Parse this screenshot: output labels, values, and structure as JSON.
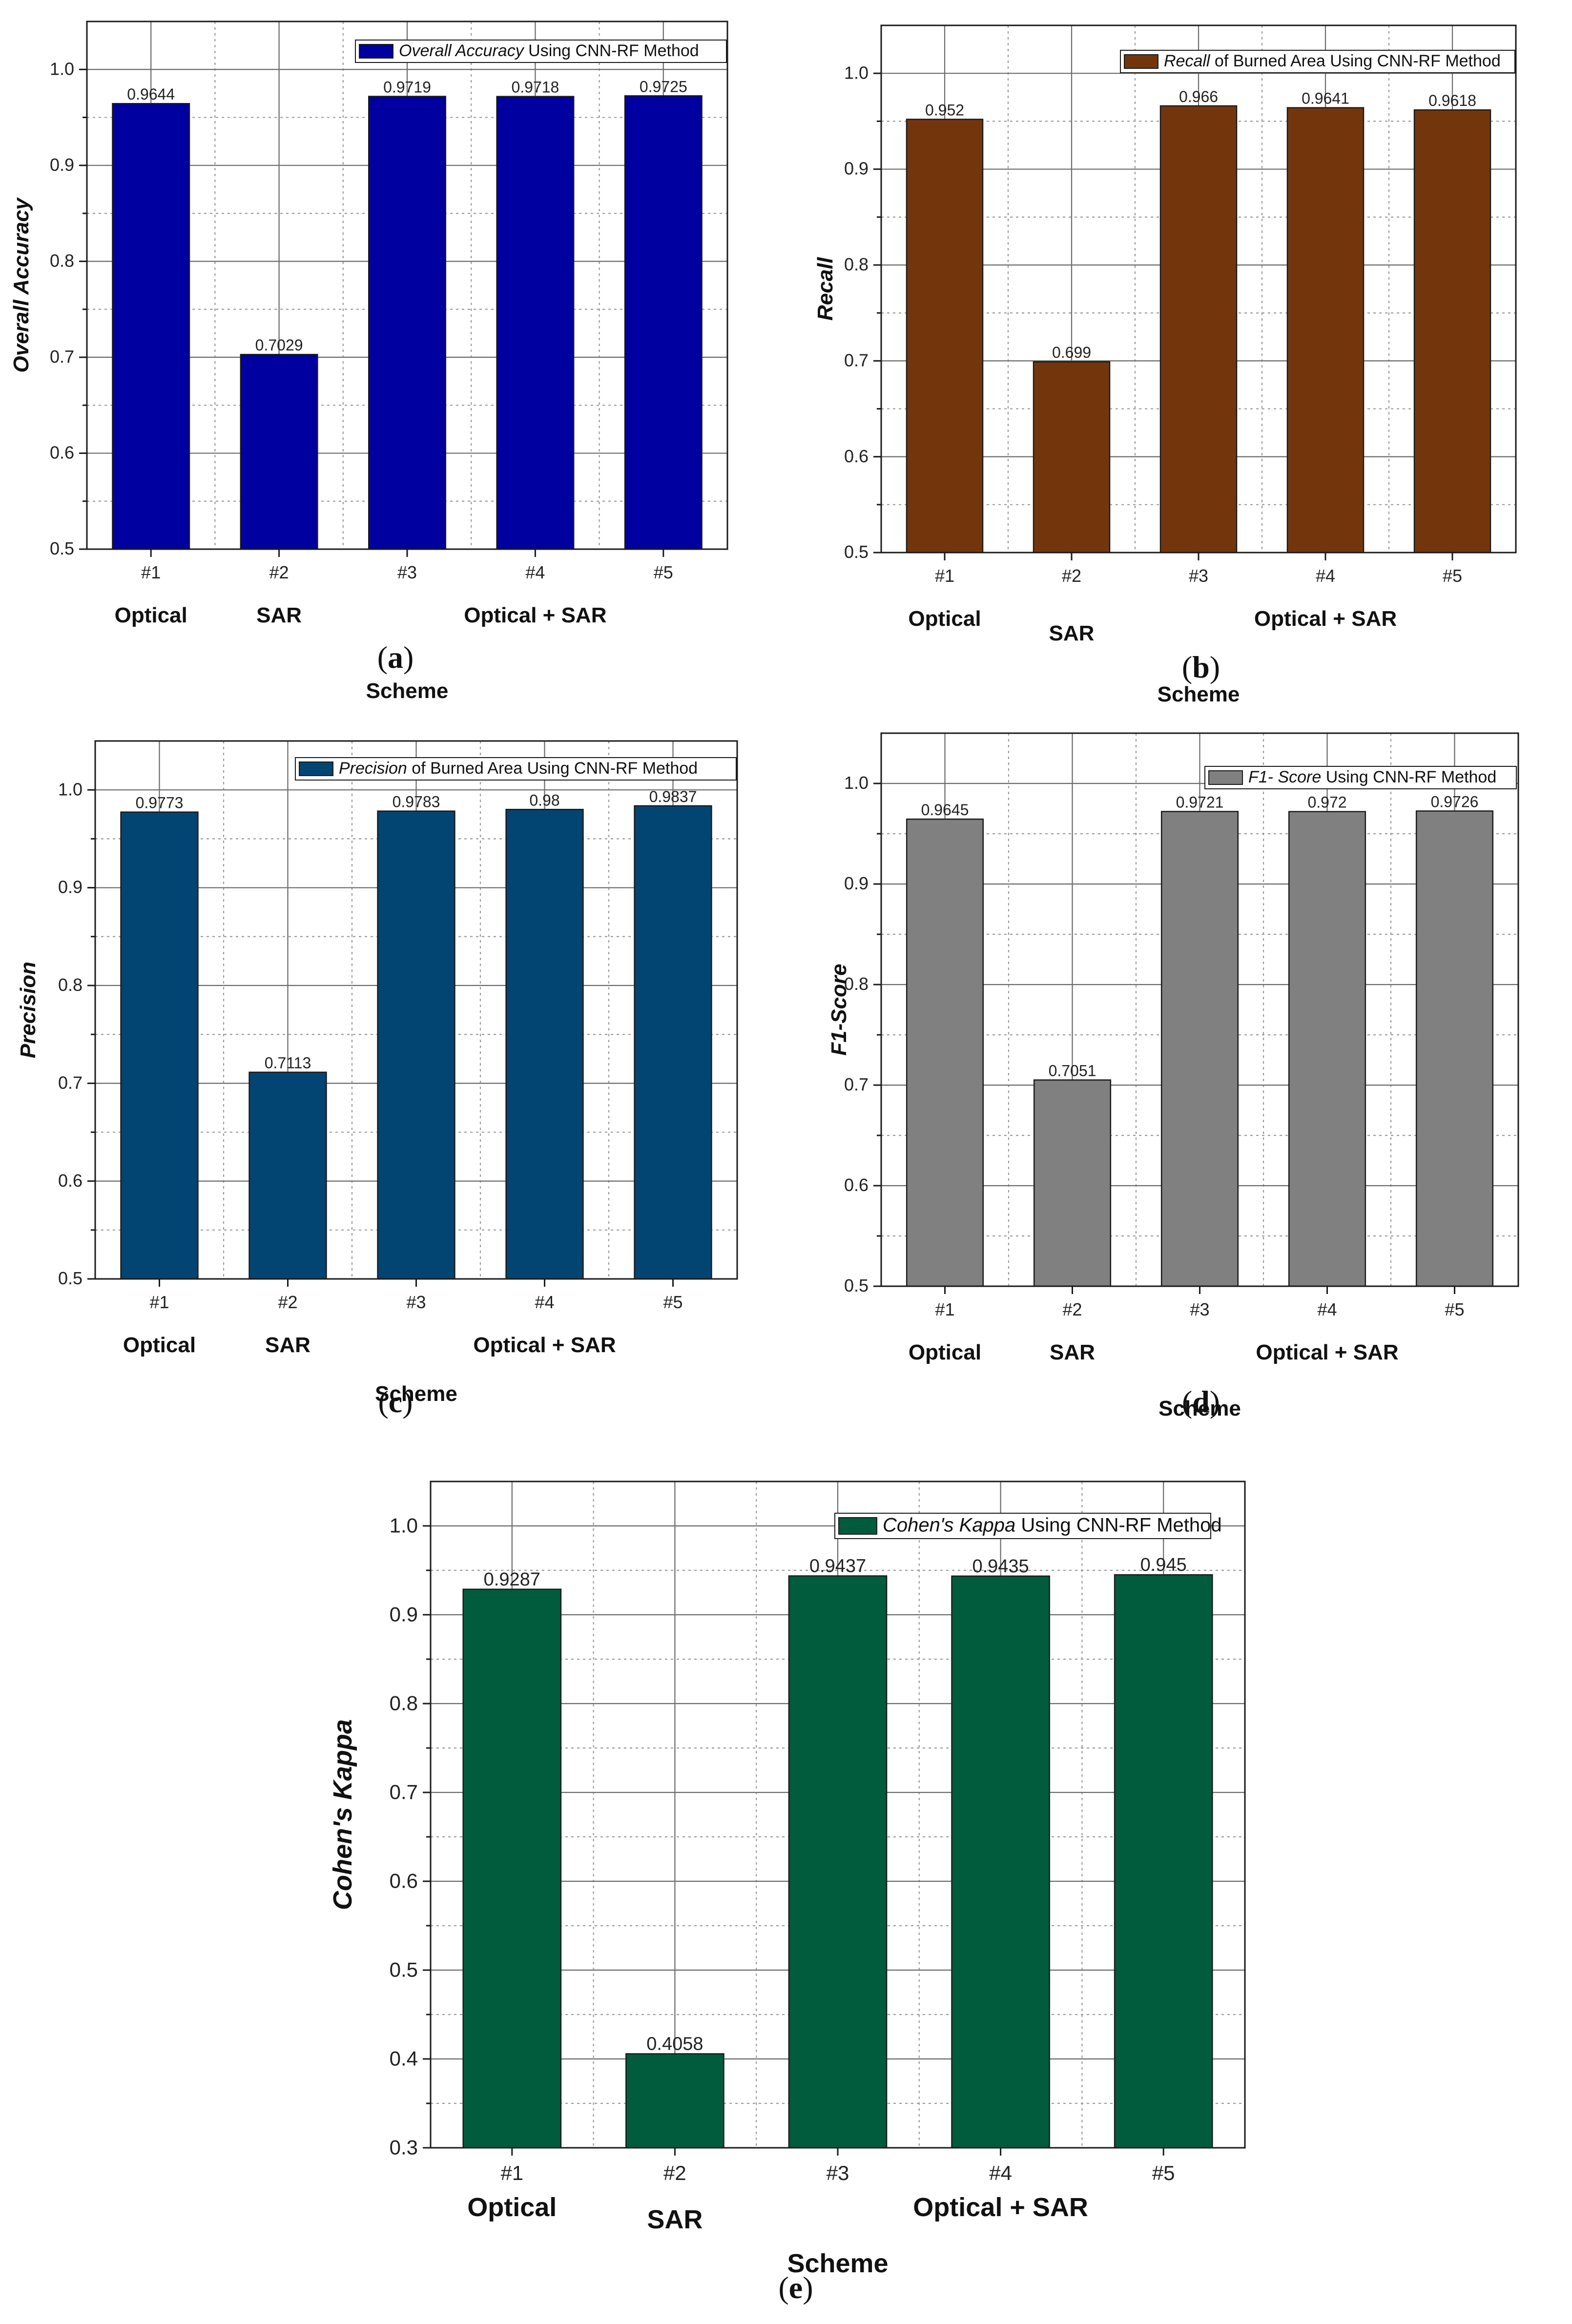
{
  "chart_data": [
    {
      "id": "a",
      "type": "bar",
      "caption_letter": "a",
      "categories": [
        "#1",
        "#2",
        "#3",
        "#4",
        "#5"
      ],
      "values": [
        0.9644,
        0.7029,
        0.9719,
        0.9718,
        0.9725
      ],
      "value_labels": [
        "0.9644",
        "0.7029",
        "0.9719",
        "0.9718",
        "0.9725"
      ],
      "groups": [
        {
          "label": "Optical",
          "from": 0,
          "to": 0
        },
        {
          "label": "SAR",
          "from": 1,
          "to": 1
        },
        {
          "label": "Optical + SAR",
          "from": 2,
          "to": 4
        }
      ],
      "ylabel": "Overall Accuracy",
      "xlabel": "Scheme",
      "legend_italic": "Overall Accuracy",
      "legend_rest": " Using CNN-RF Method",
      "ylim": [
        0.5,
        1.05
      ],
      "yticks": [
        0.5,
        0.6,
        0.7,
        0.8,
        0.9,
        1.0
      ],
      "bar_color": "#0000a0"
    },
    {
      "id": "b",
      "type": "bar",
      "caption_letter": "b",
      "categories": [
        "#1",
        "#2",
        "#3",
        "#4",
        "#5"
      ],
      "values": [
        0.952,
        0.699,
        0.966,
        0.9641,
        0.9618
      ],
      "value_labels": [
        "0.952",
        "0.699",
        "0.966",
        "0.9641",
        "0.9618"
      ],
      "groups": [
        {
          "label": "Optical",
          "from": 0,
          "to": 0
        },
        {
          "label": "SAR",
          "from": 1,
          "to": 1
        },
        {
          "label": "Optical + SAR",
          "from": 2,
          "to": 4
        }
      ],
      "ylabel": "Recall",
      "xlabel": "Scheme",
      "legend_italic": "Recall",
      "legend_rest": " of Burned Area Using CNN-RF Method",
      "ylim": [
        0.5,
        1.05
      ],
      "yticks": [
        0.5,
        0.6,
        0.7,
        0.8,
        0.9,
        1.0
      ],
      "bar_color": "#73360c"
    },
    {
      "id": "c",
      "type": "bar",
      "caption_letter": "c",
      "categories": [
        "#1",
        "#2",
        "#3",
        "#4",
        "#5"
      ],
      "values": [
        0.9773,
        0.7113,
        0.9783,
        0.98,
        0.9837
      ],
      "value_labels": [
        "0.9773",
        "0.7113",
        "0.9783",
        "0.98",
        "0.9837"
      ],
      "groups": [
        {
          "label": "Optical",
          "from": 0,
          "to": 0
        },
        {
          "label": "SAR",
          "from": 1,
          "to": 1
        },
        {
          "label": "Optical + SAR",
          "from": 2,
          "to": 4
        }
      ],
      "ylabel": "Precision",
      "xlabel": "Scheme",
      "legend_italic": "Precision",
      "legend_rest": " of Burned Area Using CNN-RF Method",
      "ylim": [
        0.5,
        1.05
      ],
      "yticks": [
        0.5,
        0.6,
        0.7,
        0.8,
        0.9,
        1.0
      ],
      "bar_color": "#034572"
    },
    {
      "id": "d",
      "type": "bar",
      "caption_letter": "d",
      "categories": [
        "#1",
        "#2",
        "#3",
        "#4",
        "#5"
      ],
      "values": [
        0.9645,
        0.7051,
        0.9721,
        0.972,
        0.9726
      ],
      "value_labels": [
        "0.9645",
        "0.7051",
        "0.9721",
        "0.972",
        "0.9726"
      ],
      "groups": [
        {
          "label": "Optical",
          "from": 0,
          "to": 0
        },
        {
          "label": "SAR",
          "from": 1,
          "to": 1
        },
        {
          "label": "Optical + SAR",
          "from": 2,
          "to": 4
        }
      ],
      "ylabel": "F1-Score",
      "xlabel": "Scheme",
      "legend_italic": "F1- Score",
      "legend_rest": " Using CNN-RF Method",
      "ylim": [
        0.5,
        1.05
      ],
      "yticks": [
        0.5,
        0.6,
        0.7,
        0.8,
        0.9,
        1.0
      ],
      "bar_color": "#808080"
    },
    {
      "id": "e",
      "type": "bar",
      "caption_letter": "e",
      "categories": [
        "#1",
        "#2",
        "#3",
        "#4",
        "#5"
      ],
      "values": [
        0.9287,
        0.4058,
        0.9437,
        0.9435,
        0.945
      ],
      "value_labels": [
        "0.9287",
        "0.4058",
        "0.9437",
        "0.9435",
        "0.945"
      ],
      "groups": [
        {
          "label": "Optical",
          "from": 0,
          "to": 0
        },
        {
          "label": "SAR",
          "from": 1,
          "to": 1
        },
        {
          "label": "Optical + SAR",
          "from": 2,
          "to": 4
        }
      ],
      "ylabel": "Cohen's Kappa",
      "xlabel": "Scheme",
      "legend_italic": "Cohen's Kappa",
      "legend_rest": " Using CNN-RF Method",
      "ylim": [
        0.3,
        1.05
      ],
      "yticks": [
        0.3,
        0.4,
        0.5,
        0.6,
        0.7,
        0.8,
        0.9,
        1.0
      ],
      "bar_color": "#005c3c"
    }
  ]
}
